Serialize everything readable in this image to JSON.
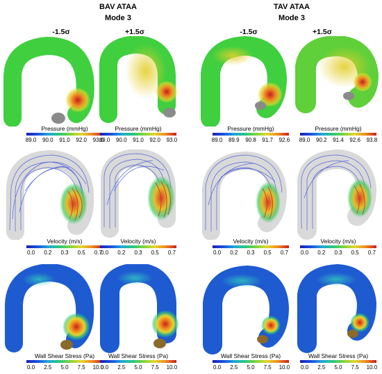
{
  "left_group": {
    "title": "BAV ATAA",
    "mode": "Mode 3",
    "minus": "-1.5σ",
    "plus": "+1.5σ"
  },
  "right_group": {
    "title": "TAV ATAA",
    "mode": "Mode 3",
    "minus": "-1.5σ",
    "plus": "+1.5σ"
  },
  "colorbars": {
    "bav_minus_pressure": {
      "title": "Pressure (mmHg)",
      "ticks": [
        "89.0",
        "90.0",
        "91.0",
        "92.0",
        "93.0"
      ]
    },
    "bav_plus_pressure": {
      "title": "Pressure (mmHg)",
      "ticks": [
        "89.0",
        "90.0",
        "91.0",
        "92.0",
        "93.0"
      ]
    },
    "tav_minus_pressure": {
      "title": "Pressure (mmHg)",
      "ticks": [
        "89.0",
        "89.9",
        "90.8",
        "91.7",
        "92.6"
      ]
    },
    "tav_plus_pressure": {
      "title": "Pressure (mmHg)",
      "ticks": [
        "89.0",
        "90.2",
        "91.4",
        "92.6",
        "93.8"
      ]
    },
    "bav_minus_velocity": {
      "title": "Velocity (m/s)",
      "ticks": [
        "0.0",
        "0.2",
        "0.3",
        "0.5",
        "0.7"
      ]
    },
    "bav_plus_velocity": {
      "title": "Velocity (m/s)",
      "ticks": [
        "0.0",
        "0.2",
        "0.3",
        "0.5",
        "0.7"
      ]
    },
    "tav_minus_velocity": {
      "title": "Velocity (m/s)",
      "ticks": [
        "0.0",
        "0.2",
        "0.3",
        "0.5",
        "0.7"
      ]
    },
    "tav_plus_velocity": {
      "title": "Velocity (m/s)",
      "ticks": [
        "0.0",
        "0.2",
        "0.3",
        "0.5",
        "0.7"
      ]
    },
    "bav_minus_wss": {
      "title": "Wall Shear Stress (Pa)",
      "ticks": [
        "0.0",
        "2.5",
        "5.0",
        "7.5",
        "10.0"
      ]
    },
    "bav_plus_wss": {
      "title": "Wall Shear Stress (Pa)",
      "ticks": [
        "0.0",
        "2.5",
        "5.0",
        "7.5",
        "10.0"
      ]
    },
    "tav_minus_wss": {
      "title": "Wall Shear Stress (Pa)",
      "ticks": [
        "0.0",
        "2.5",
        "5.0",
        "7.5",
        "10.0"
      ]
    },
    "tav_plus_wss": {
      "title": "Wall Shear Stress (Pa)",
      "ticks": [
        "0.0",
        "2.5",
        "5.0",
        "7.5",
        "10.0"
      ]
    }
  },
  "colors": {
    "pressure_body": "#3fcf3f",
    "pressure_hot": "#e3d72c",
    "pressure_peak": "#d4301e",
    "wss_body": "#1e5ad0",
    "wss_hot": "#e3b02a",
    "streamline_blue": "#3a4fd8",
    "streamline_hot": "#d8402a",
    "shell": "#d9d9d9"
  }
}
